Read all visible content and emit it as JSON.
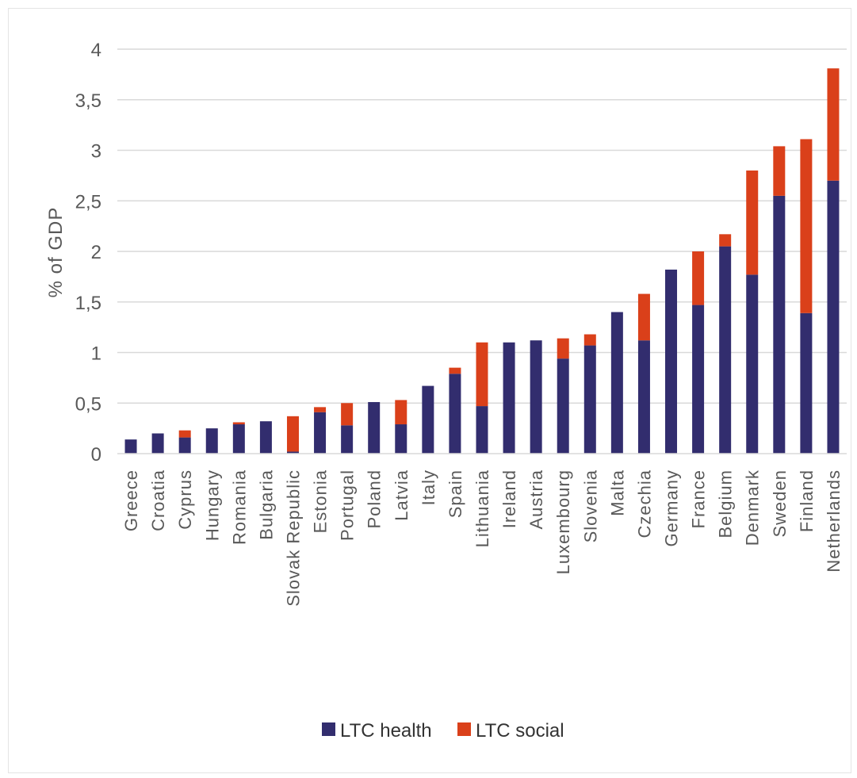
{
  "chart_data": {
    "type": "bar",
    "stacked": true,
    "title": "",
    "xlabel": "",
    "ylabel": "% of GDP",
    "ylim": [
      0,
      4
    ],
    "yticks": [
      0,
      0.5,
      1,
      1.5,
      2,
      2.5,
      3,
      3.5,
      4
    ],
    "ytick_labels": [
      "0",
      "0,5",
      "1",
      "1,5",
      "2",
      "2,5",
      "3",
      "3,5",
      "4"
    ],
    "grid": true,
    "legend_position": "bottom",
    "categories": [
      "Greece",
      "Croatia",
      "Cyprus",
      "Hungary",
      "Romania",
      "Bulgaria",
      "Slovak Republic",
      "Estonia",
      "Portugal",
      "Poland",
      "Latvia",
      "Italy",
      "Spain",
      "Lithuania",
      "Ireland",
      "Austria",
      "Luxembourg",
      "Slovenia",
      "Malta",
      "Czechia",
      "Germany",
      "France",
      "Belgium",
      "Denmark",
      "Sweden",
      "Finland",
      "Netherlands"
    ],
    "series": [
      {
        "name": "LTC health",
        "color": "#322d6e",
        "values": [
          0.14,
          0.2,
          0.16,
          0.25,
          0.29,
          0.32,
          0.02,
          0.41,
          0.28,
          0.51,
          0.29,
          0.67,
          0.79,
          0.47,
          1.1,
          1.12,
          0.94,
          1.07,
          1.4,
          1.12,
          1.82,
          1.47,
          2.05,
          1.77,
          2.55,
          1.39,
          2.7
        ]
      },
      {
        "name": "LTC social",
        "color": "#da401a",
        "values": [
          0,
          0,
          0.07,
          0,
          0.02,
          0,
          0.35,
          0.05,
          0.22,
          0,
          0.24,
          0,
          0.06,
          0.63,
          0,
          0,
          0.2,
          0.11,
          0,
          0.46,
          0,
          0.53,
          0.12,
          1.03,
          0.49,
          1.72,
          1.11
        ]
      }
    ]
  }
}
